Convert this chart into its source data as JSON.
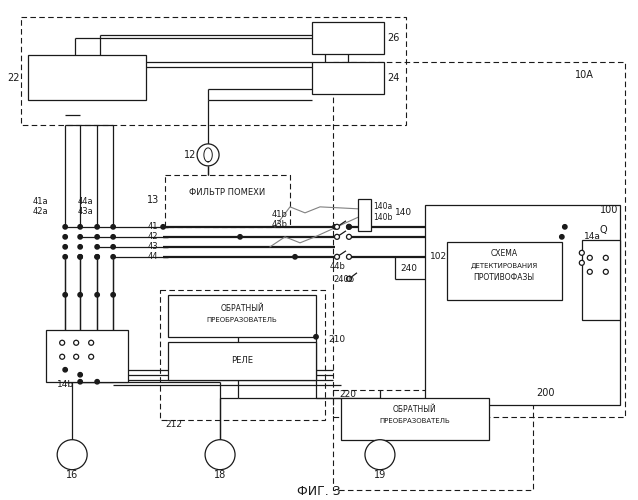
{
  "bg": "#ffffff",
  "lc": "#1a1a1a",
  "fig_w": 6.38,
  "fig_h": 5.0,
  "dpi": 100,
  "caption": "ФИГ. 3",
  "filter_text": [
    "ФИЛЬТР ПОМЕХИ"
  ],
  "schema_text": [
    "СХЕМА",
    "ДЕТЕКТИРОВАНИЯ",
    "ПРОТИВОФАЗЫ"
  ],
  "inv_text": [
    "ОБРАТНЫЙ",
    "ПРЕОБРАЗОВАТЕЛЬ"
  ],
  "relay_text": "РЕЛЕ"
}
